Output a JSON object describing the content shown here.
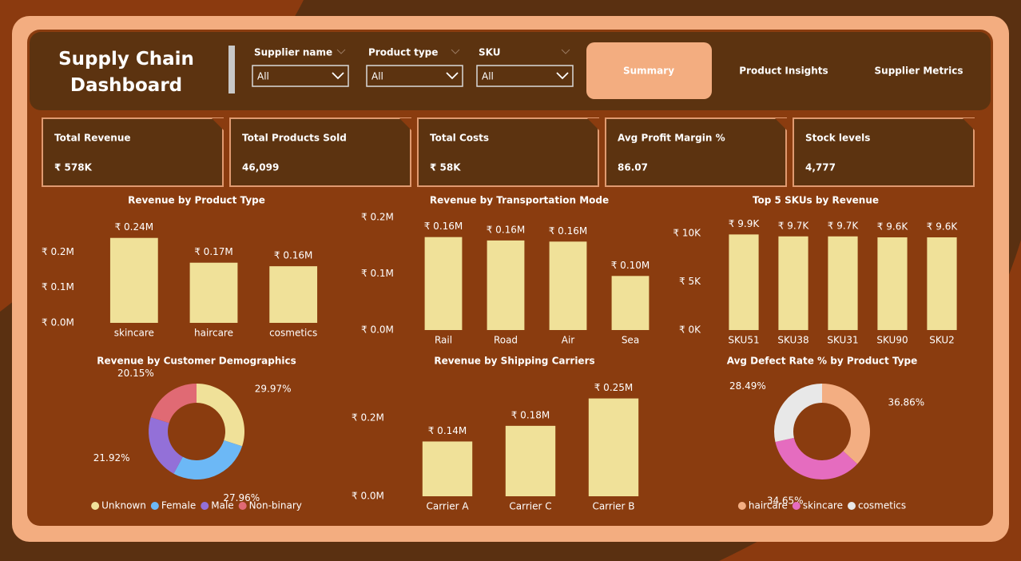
{
  "header": {
    "title": "Supply Chain Dashboard"
  },
  "filters": [
    {
      "label": "Supplier name",
      "value": "All"
    },
    {
      "label": "Product type",
      "value": "All"
    },
    {
      "label": "SKU",
      "value": "All"
    }
  ],
  "tabs": [
    "Summary",
    "Product Insights",
    "Supplier Metrics"
  ],
  "kpis": [
    {
      "label": "Total Revenue",
      "value": "₹ 578K"
    },
    {
      "label": "Total Products Sold",
      "value": "46,099"
    },
    {
      "label": "Total Costs",
      "value": "₹ 58K"
    },
    {
      "label": "Avg Profit Margin %",
      "value": "86.07"
    },
    {
      "label": "Stock levels",
      "value": "4,777"
    }
  ],
  "chart_data": [
    {
      "type": "bar",
      "title": "Revenue by Product Type",
      "categories": [
        "skincare",
        "haircare",
        "cosmetics"
      ],
      "values": [
        240000,
        170000,
        160000
      ],
      "value_labels": [
        "₹ 0.24M",
        "₹ 0.17M",
        "₹ 0.16M"
      ],
      "color": "#f0e199",
      "ylim": [
        0,
        280000
      ],
      "yticks": [
        {
          "value": 0,
          "label": "₹ 0.0M"
        },
        {
          "value": 100000,
          "label": "₹ 0.1M"
        },
        {
          "value": 200000,
          "label": "₹ 0.2M"
        }
      ]
    },
    {
      "type": "bar",
      "title": "Revenue by Transportation Mode",
      "categories": [
        "Rail",
        "Road",
        "Air",
        "Sea"
      ],
      "values": [
        165000,
        159000,
        157000,
        96000
      ],
      "value_labels": [
        "₹ 0.16M",
        "₹ 0.16M",
        "₹ 0.16M",
        "₹ 0.10M"
      ],
      "color": "#f0e199",
      "ylim": [
        0,
        200000
      ],
      "yticks": [
        {
          "value": 0,
          "label": "₹ 0.0M"
        },
        {
          "value": 100000,
          "label": "₹ 0.1M"
        },
        {
          "value": 200000,
          "label": "₹ 0.2M"
        }
      ]
    },
    {
      "type": "bar",
      "title": "Top 5 SKUs by Revenue",
      "categories": [
        "SKU51",
        "SKU38",
        "SKU31",
        "SKU90",
        "SKU2"
      ],
      "values": [
        9900,
        9700,
        9700,
        9600,
        9600
      ],
      "value_labels": [
        "₹ 9.9K",
        "₹ 9.7K",
        "₹ 9.7K",
        "₹ 9.6K",
        "₹ 9.6K"
      ],
      "color": "#f0e199",
      "ylim": [
        0,
        12000
      ],
      "yticks": [
        {
          "value": 0,
          "label": "₹ 0K"
        },
        {
          "value": 5000,
          "label": "₹ 5K"
        },
        {
          "value": 10000,
          "label": "₹ 10K"
        }
      ]
    },
    {
      "type": "pie",
      "title": "Revenue by Customer Demographics",
      "categories": [
        "Unknown",
        "Female",
        "Male",
        "Non-binary"
      ],
      "values": [
        29.97,
        27.96,
        21.92,
        20.15
      ],
      "value_labels": [
        "29.97%",
        "27.96%",
        "21.92%",
        "20.15%"
      ],
      "colors": [
        "#f0e199",
        "#6cb8f6",
        "#9370d8",
        "#e06a74"
      ],
      "legend": "bottom"
    },
    {
      "type": "bar",
      "title": "Revenue by Shipping Carriers",
      "categories": [
        "Carrier A",
        "Carrier C",
        "Carrier B"
      ],
      "values": [
        140000,
        180000,
        250000
      ],
      "value_labels": [
        "₹ 0.14M",
        "₹ 0.18M",
        "₹ 0.25M"
      ],
      "color": "#f0e199",
      "ylim": [
        0,
        290000
      ],
      "yticks": [
        {
          "value": 0,
          "label": "₹ 0.0M"
        },
        {
          "value": 200000,
          "label": "₹ 0.2M"
        }
      ]
    },
    {
      "type": "pie",
      "title": "Avg Defect Rate % by Product Type",
      "categories": [
        "haircare",
        "skincare",
        "cosmetics"
      ],
      "values": [
        36.86,
        34.65,
        28.49
      ],
      "value_labels": [
        "36.86%",
        "34.65%",
        "28.49%"
      ],
      "colors": [
        "#f3ae82",
        "#e56cbf",
        "#e8e8e8"
      ],
      "legend": "bottom"
    }
  ]
}
